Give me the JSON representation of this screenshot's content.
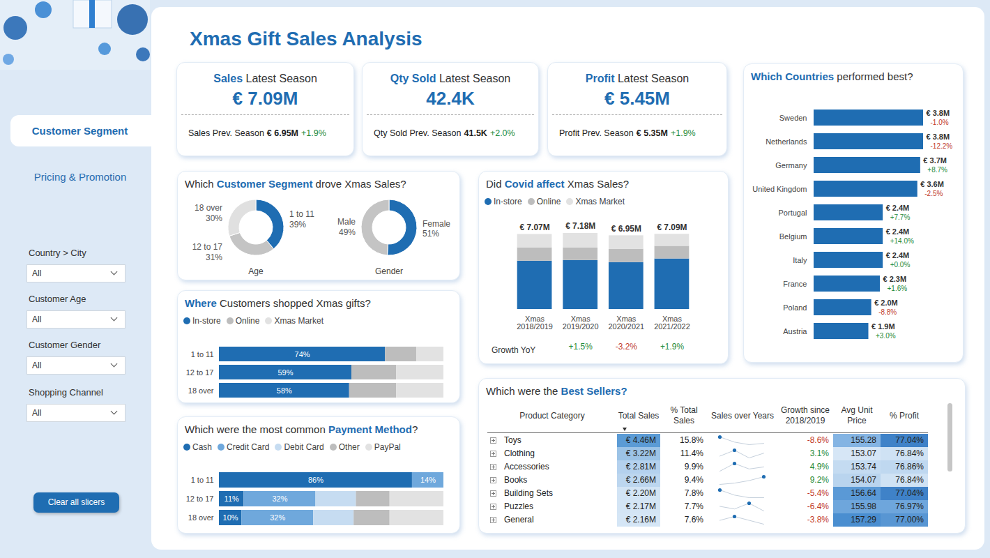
{
  "title": "Xmas Gift Sales Analysis",
  "nav": {
    "items": [
      "Customer Segment",
      "Pricing & Promotion"
    ],
    "active": "Customer Segment"
  },
  "slicers": [
    {
      "label": "Country > City",
      "value": "All"
    },
    {
      "label": "Customer Age",
      "value": "All"
    },
    {
      "label": "Customer Gender",
      "value": "All"
    },
    {
      "label": "Shopping Channel",
      "value": "All"
    }
  ],
  "button": "Clear all slicers",
  "kpis": [
    {
      "title": "Sales Latest Season",
      "title_highlight": "Sales",
      "value": "€ 7.09M",
      "previous_label": "Sales Prev. Season",
      "previous_value": "€ 6.95M",
      "change": "+1.9%"
    },
    {
      "title": "Qty Sold Latest Season",
      "title_highlight": "Qty Sold",
      "value": "42.4K",
      "previous_label": "Qty Sold Prev. Season",
      "previous_value": "41.5K",
      "change": "+2.0%"
    },
    {
      "title": "Profit Latest Season",
      "title_highlight": "Profit",
      "value": "€ 5.45M",
      "previous_label": "Profit Prev. Season",
      "previous_value": "€ 5.35M",
      "change": "+1.9%"
    }
  ],
  "chart_data": [
    {
      "type": "donut",
      "title": "Which Customer Segment drove Xmas Sales?",
      "title_highlight": "Customer Segment",
      "data_labels": true,
      "charts": [
        {
          "label": "Age",
          "categories": [
            "1 to 11",
            "12 to 17",
            "18 over"
          ],
          "values": [
            39,
            31,
            30
          ],
          "value_labels": [
            "39%",
            "31%",
            "30%"
          ],
          "colors": [
            "#1f6db2",
            "#c4c4c4",
            "#e0e0e0"
          ]
        },
        {
          "label": "Gender",
          "categories": [
            "Female",
            "Male"
          ],
          "values": [
            51,
            49
          ],
          "value_labels": [
            "51%",
            "49%"
          ],
          "colors": [
            "#1f6db2",
            "#c4c4c4"
          ]
        }
      ]
    },
    {
      "type": "bar",
      "stacked": true,
      "title": "Did Covid affect Xmas Sales?",
      "title_highlight": "Covid affect",
      "legend": "top-left",
      "tick_labels": "x",
      "data_labels": true,
      "categories": [
        "Xmas 2018/2019",
        "Xmas 2019/2020",
        "Xmas 2020/2021",
        "Xmas 2021/2022"
      ],
      "series": [
        {
          "name": "In-store",
          "color": "#1f6db2",
          "values": [
            4.56,
            4.63,
            4.43,
            4.77
          ]
        },
        {
          "name": "Online",
          "color": "#bdbdbd",
          "values": [
            1.26,
            1.19,
            1.26,
            1.19
          ]
        },
        {
          "name": "Xmas Market",
          "color": "#e2e2e2",
          "values": [
            1.25,
            1.36,
            1.26,
            1.13
          ]
        }
      ],
      "totals": [
        7.07,
        7.18,
        6.95,
        7.09
      ],
      "total_labels": [
        "€ 7.07M",
        "€ 7.18M",
        "€ 6.95M",
        "€ 7.09M"
      ],
      "growth_title": "Growth YoY",
      "growth": [
        null,
        1.5,
        -3.2,
        1.9
      ],
      "growth_labels": [
        null,
        "+1.5%",
        "-3.2%",
        "+1.9%"
      ],
      "ylim": [
        0,
        7.18
      ]
    },
    {
      "type": "bar",
      "orientation": "horizontal",
      "title": "Which Countries performed best?",
      "title_highlight": "Which Countries",
      "tick_labels": "y",
      "data_labels": true,
      "color": "#1f6db2",
      "categories": [
        "Sweden",
        "Netherlands",
        "Germany",
        "United Kingdom",
        "Portugal",
        "Belgium",
        "Italy",
        "France",
        "Poland",
        "Austria"
      ],
      "values": [
        3.8,
        3.8,
        3.7,
        3.6,
        2.4,
        2.4,
        2.4,
        2.3,
        2.0,
        1.9
      ],
      "value_labels": [
        "€ 3.8M",
        "€ 3.8M",
        "€ 3.7M",
        "€ 3.6M",
        "€ 2.4M",
        "€ 2.4M",
        "€ 2.4M",
        "€ 2.3M",
        "€ 2.0M",
        "€ 1.9M"
      ],
      "growth": [
        -1.0,
        -12.2,
        8.7,
        -2.5,
        7.7,
        14.0,
        0.0,
        1.6,
        -8.8,
        3.0
      ],
      "growth_labels": [
        "-1.0%",
        "-12.2%",
        "+8.7%",
        "-2.5%",
        "+7.7%",
        "+14.0%",
        "+0.0%",
        "+1.6%",
        "-8.8%",
        "+3.0%"
      ],
      "xlim": [
        0,
        3.8
      ]
    },
    {
      "type": "bar",
      "orientation": "horizontal",
      "stacked": true,
      "title": "Where Customers shopped Xmas gifts?",
      "title_highlight": "Where",
      "legend": "top-left",
      "tick_labels": "y",
      "data_labels": true,
      "categories": [
        "1 to 11",
        "12 to 17",
        "18 over"
      ],
      "series": [
        {
          "name": "In-store",
          "color": "#1f6db2",
          "values": [
            74,
            59,
            58
          ],
          "value_labels": [
            "74%",
            "59%",
            "58%"
          ]
        },
        {
          "name": "Online",
          "color": "#bdbdbd",
          "values": [
            14,
            20,
            21
          ]
        },
        {
          "name": "Xmas Market",
          "color": "#e2e2e2",
          "values": [
            12,
            21,
            21
          ]
        }
      ],
      "xlim": [
        0,
        100
      ]
    },
    {
      "type": "bar",
      "orientation": "horizontal",
      "stacked": true,
      "title": "Which were the most common Payment Method?",
      "title_highlight": "Payment Method",
      "legend": "top-left",
      "tick_labels": "y",
      "data_labels": true,
      "categories": [
        "1 to 11",
        "12 to 17",
        "18 over"
      ],
      "series": [
        {
          "name": "Cash",
          "color": "#1f6db2",
          "values": [
            86,
            11,
            10
          ],
          "value_labels": [
            "86%",
            "11%",
            "10%"
          ]
        },
        {
          "name": "Credit Card",
          "color": "#6fa8dc",
          "values": [
            14,
            32,
            32
          ],
          "value_labels": [
            "14%",
            "32%",
            "32%"
          ]
        },
        {
          "name": "Debit Card",
          "color": "#c6dcf1",
          "values": [
            0,
            18,
            18
          ]
        },
        {
          "name": "Other",
          "color": "#bdbdbd",
          "values": [
            0,
            15,
            16
          ]
        },
        {
          "name": "PayPal",
          "color": "#e2e2e2",
          "values": [
            0,
            24,
            24
          ]
        }
      ],
      "xlim": [
        0,
        100
      ]
    }
  ],
  "table": {
    "title": "Which were the Best Sellers?",
    "title_highlight": "Best Sellers?",
    "columns": [
      "Product Category",
      "Total Sales",
      "% Total Sales",
      "Sales over Years",
      "Growth since 2018/2019",
      "Avg Unit Price",
      "% Profit"
    ],
    "sorted_by": "Total Sales",
    "rows": [
      [
        "Toys",
        "€ 4.46M",
        "15.8%",
        [
          1.19,
          1.11,
          1.07,
          1.09
        ],
        "-8.6%",
        "155.28",
        "77.04%"
      ],
      [
        "Clothing",
        "€ 3.22M",
        "11.4%",
        [
          0.79,
          0.84,
          0.775,
          0.815
        ],
        "3.1%",
        "153.07",
        "76.84%"
      ],
      [
        "Accessories",
        "€ 2.81M",
        "9.9%",
        [
          0.675,
          0.735,
          0.692,
          0.708
        ],
        "4.9%",
        "153.74",
        "76.86%"
      ],
      [
        "Books",
        "€ 2.66M",
        "9.4%",
        [
          0.64,
          0.65,
          0.67,
          0.7
        ],
        "9.2%",
        "154.07",
        "76.84%"
      ],
      [
        "Building Sets",
        "€ 2.20M",
        "7.8%",
        [
          0.57,
          0.55,
          0.54,
          0.54
        ],
        "-5.4%",
        "156.64",
        "77.04%"
      ],
      [
        "Puzzles",
        "€ 2.17M",
        "7.7%",
        [
          0.55,
          0.53,
          0.574,
          0.515
        ],
        "-6.4%",
        "155.98",
        "76.97%"
      ],
      [
        "General",
        "€ 2.16M",
        "7.6%",
        [
          0.54,
          0.56,
          0.54,
          0.52
        ],
        "-3.8%",
        "157.29",
        "77.00%"
      ]
    ],
    "colors": [
      null,
      [
        "#5b9bd5",
        "#9cc3e6",
        "#b4d1ee",
        "#bcd6ef",
        "#d2e4f5",
        "#d4e5f5",
        "#d5e6f6"
      ],
      null,
      null,
      null,
      [
        "#84b4e3",
        "#d6e6f6",
        "#c4dbf1",
        "#b9d4ee",
        "#5a99d6",
        "#6ea6dc",
        "#4a8ed0"
      ],
      [
        "#3f82c8",
        "#cfe2f4",
        "#bfd8f0",
        "#cfe2f4",
        "#3f82c8",
        "#6ea6dc",
        "#5896d3"
      ]
    ]
  }
}
